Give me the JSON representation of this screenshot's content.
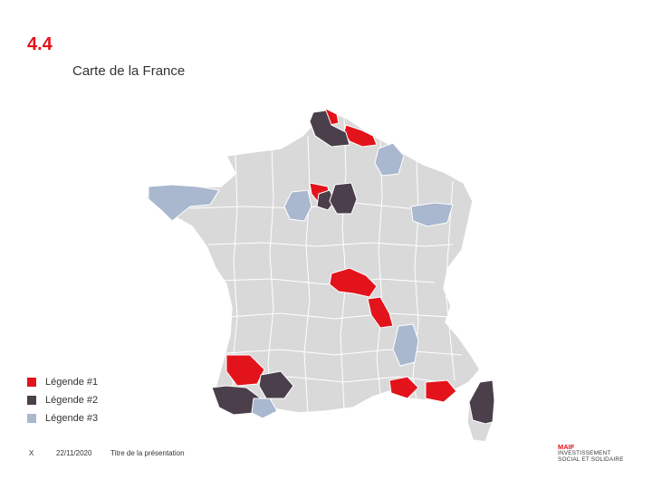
{
  "slide": {
    "number": "4.4",
    "title": "Carte de la France"
  },
  "legend": [
    {
      "label": "Légende #1",
      "color": "#e3131b"
    },
    {
      "label": "Légende #2",
      "color": "#4b3f4b"
    },
    {
      "label": "Légende #3",
      "color": "#a9b7cf"
    }
  ],
  "map": {
    "base_color": "#d9d9d9",
    "border_color": "#ffffff"
  },
  "footer": {
    "page": "X",
    "date": "22/11/2020",
    "title": "Titre de la présentation"
  },
  "brand": {
    "name": "MAIF",
    "line1": "INVESTISSEMENT",
    "line2": "SOCIAL ET SOLIDAIRE"
  }
}
